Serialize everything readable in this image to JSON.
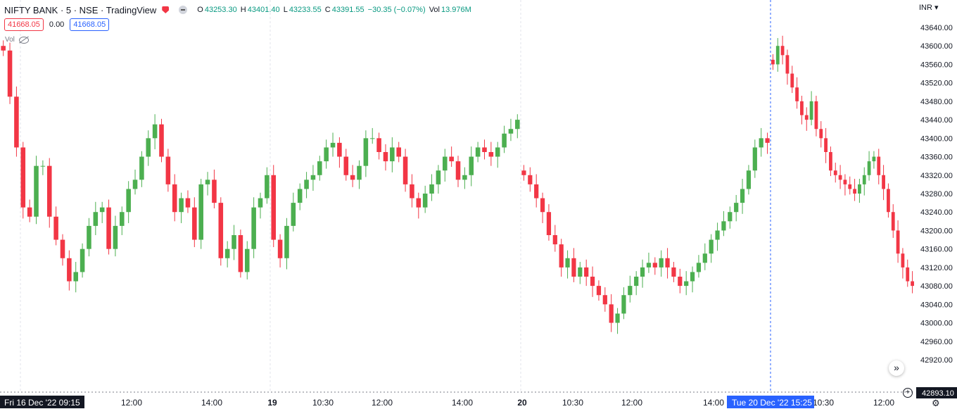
{
  "header": {
    "title": "NIFTY BANK · 5 · NSE · TradingView",
    "ohlc": {
      "o_label": "O",
      "o": "43253.30",
      "h_label": "H",
      "h": "43401.40",
      "l_label": "L",
      "l": "43233.55",
      "c_label": "C",
      "c": "43391.55",
      "change": "−30.35 (−0.07%)",
      "vol_label": "Vol",
      "vol": "13.976M"
    },
    "sell_price": "41668.05",
    "spread": "0.00",
    "buy_price": "41668.05",
    "volume_indicator": "Vol"
  },
  "price_axis": {
    "currency": "INR",
    "ticks": [
      "43640.00",
      "43600.00",
      "43560.00",
      "43520.00",
      "43480.00",
      "43440.00",
      "43400.00",
      "43360.00",
      "43320.00",
      "43280.00",
      "43240.00",
      "43200.00",
      "43160.00",
      "43120.00",
      "43080.00",
      "43040.00",
      "43000.00",
      "42960.00",
      "42920.00"
    ],
    "last_price_label": "42893.10"
  },
  "time_axis": {
    "ticks": [
      "12:00",
      "14:00",
      "19",
      "10:30",
      "12:00",
      "14:00",
      "20",
      "10:30",
      "12:00",
      "14:00",
      "10:30",
      "12:00"
    ],
    "crosshair_left": "Fri 16 Dec '22   09:15",
    "crosshair_right": "Tue 20 Dec '22   15:25"
  },
  "colors": {
    "up": "#4caf50",
    "down": "#f23645",
    "accent": "#2962ff"
  },
  "chart_data": {
    "type": "candlestick",
    "symbol": "NIFTY BANK",
    "interval": "5",
    "ylim": [
      42900,
      43660
    ],
    "segments": [
      {
        "x0": 0,
        "x1": 740,
        "count": 120,
        "closes": [
          43590,
          43490,
          43380,
          43250,
          43230,
          43340,
          43340,
          43230,
          43180,
          43140,
          43090,
          43110,
          43160,
          43210,
          43240,
          43250,
          43160,
          43210,
          43240,
          43290,
          43310,
          43360,
          43400,
          43430,
          43360,
          43300,
          43240,
          43270,
          43250,
          43180,
          43300,
          43310,
          43260,
          43140,
          43160,
          43190,
          43110,
          43160,
          43250,
          43270,
          43320,
          43180,
          43140,
          43210,
          43260,
          43290,
          43310,
          43320,
          43350,
          43380,
          43390,
          43360,
          43320,
          43310,
          43340,
          43400,
          43400,
          43370,
          43350,
          43380,
          43360,
          43300,
          43270,
          43250,
          43280,
          43300,
          43330,
          43360,
          43350,
          43310,
          43320,
          43360,
          43380,
          43370,
          43360,
          43380,
          43410,
          43420,
          43440
        ]
      },
      {
        "x0": 740,
        "x1": 1095,
        "count": 63,
        "closes": [
          43320,
          43300,
          43270,
          43240,
          43190,
          43170,
          43120,
          43140,
          43100,
          43120,
          43100,
          43080,
          43060,
          43040,
          43000,
          43020,
          43060,
          43080,
          43100,
          43120,
          43130,
          43120,
          43140,
          43120,
          43100,
          43080,
          43090,
          43110,
          43130,
          43150,
          43180,
          43200,
          43220,
          43240,
          43260,
          43290,
          43330,
          43380,
          43400,
          43390
        ]
      },
      {
        "x0": 1095,
        "x1": 1300,
        "count": 40,
        "closes": [
          43560,
          43600,
          43580,
          43540,
          43510,
          43480,
          43450,
          43440,
          43480,
          43420,
          43400,
          43370,
          43330,
          43320,
          43310,
          43300,
          43290,
          43280,
          43300,
          43320,
          43350,
          43360,
          43320,
          43290,
          43240,
          43200,
          43150,
          43120,
          43090,
          43080
        ]
      }
    ]
  }
}
